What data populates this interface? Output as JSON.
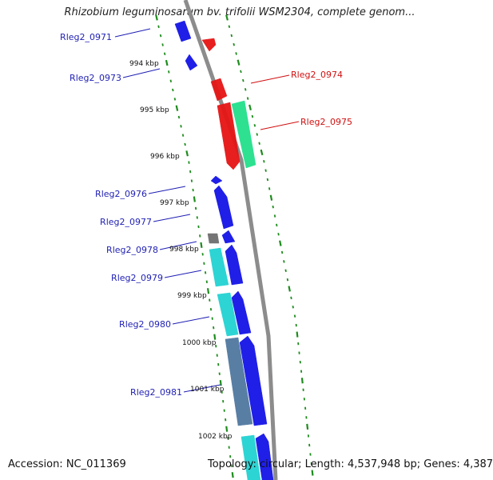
{
  "header": {
    "title": "Rhizobium leguminosarum bv. trifolii WSM2304, complete genom..."
  },
  "footer": {
    "accession": "Accession: NC_011369",
    "topology": "Topology: circular; Length: 4,537,948 bp; Genes: 4,387"
  },
  "colors": {
    "forward_label": "#1f1fb4",
    "reverse_label": "#d01010",
    "backbone": "#8c8c8c",
    "tick": "#1e8c1e",
    "gene_blue": "#1414e6",
    "gene_red": "#e61414",
    "gene_green": "#22e08c",
    "gene_cyan": "#22d2d2",
    "gene_gray": "#6e6e6e",
    "gene_steel": "#5078a0"
  },
  "kbp_labels": [
    "994 kbp",
    "995 kbp",
    "996 kbp",
    "997 kbp",
    "998 kbp",
    "999 kbp",
    "1000 kbp",
    "1001 kbp",
    "1002 kbp"
  ],
  "gene_labels": [
    {
      "text": "Rleg2_0971",
      "color": "blue"
    },
    {
      "text": "Rleg2_0973",
      "color": "blue"
    },
    {
      "text": "Rleg2_0974",
      "color": "red"
    },
    {
      "text": "Rleg2_0975",
      "color": "red"
    },
    {
      "text": "Rleg2_0976",
      "color": "blue"
    },
    {
      "text": "Rleg2_0977",
      "color": "blue"
    },
    {
      "text": "Rleg2_0978",
      "color": "blue"
    },
    {
      "text": "Rleg2_0979",
      "color": "blue"
    },
    {
      "text": "Rleg2_0980",
      "color": "blue"
    },
    {
      "text": "Rleg2_0981",
      "color": "blue"
    }
  ],
  "genes": [
    {
      "color": "gene_blue"
    },
    {
      "color": "gene_blue"
    },
    {
      "color": "gene_red"
    },
    {
      "color": "gene_red"
    },
    {
      "color": "gene_green"
    },
    {
      "color": "gene_blue"
    },
    {
      "color": "gene_blue"
    },
    {
      "color": "gene_gray"
    },
    {
      "color": "gene_blue"
    },
    {
      "color": "gene_cyan"
    },
    {
      "color": "gene_blue"
    },
    {
      "color": "gene_cyan"
    },
    {
      "color": "gene_blue"
    },
    {
      "color": "gene_steel"
    },
    {
      "color": "gene_blue"
    },
    {
      "color": "gene_cyan"
    },
    {
      "color": "gene_blue"
    }
  ]
}
